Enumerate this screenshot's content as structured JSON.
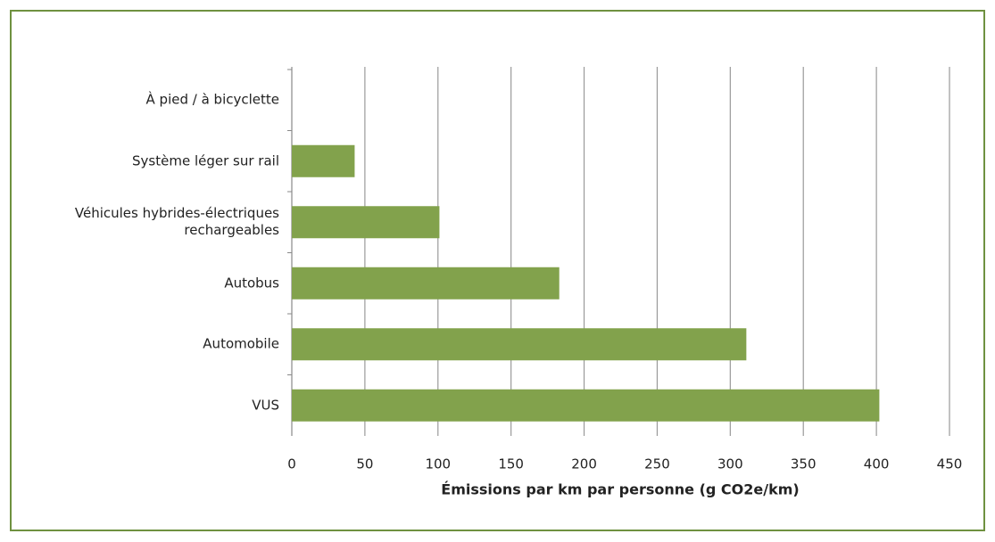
{
  "chart_data": {
    "type": "barh",
    "categories": [
      "À pied / à bicyclette",
      "Système léger sur rail",
      "Véhicules hybrides-électriques rechargeables",
      "Autobus",
      "Automobile",
      "VUS"
    ],
    "values": [
      0,
      43,
      101,
      183,
      311,
      402
    ],
    "color": "#82a24c",
    "xlabel": "Émissions par km par personne (g CO2e/km)",
    "xlim": [
      0,
      450
    ],
    "xticks": [
      0,
      50,
      100,
      150,
      200,
      250,
      300,
      350,
      400,
      450
    ],
    "grid": true
  }
}
